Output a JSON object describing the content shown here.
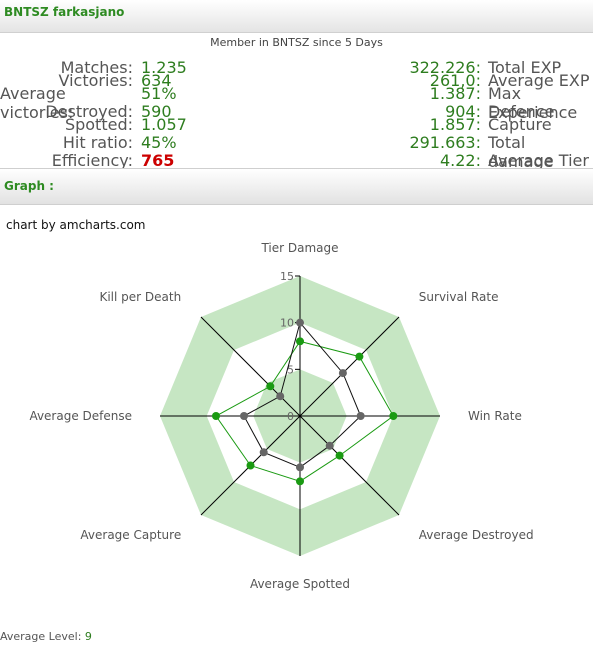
{
  "header": {
    "player_title": "BNTSZ farkasjano"
  },
  "member_line": "Member in BNTSZ  since 5 Days",
  "left_stats": [
    {
      "label": "Matches:",
      "value": "1.235"
    },
    {
      "label": "Victories:",
      "value": "634"
    },
    {
      "label": "Average victories:",
      "value": "51%"
    },
    {
      "label": "Destroyed:",
      "value": "590"
    },
    {
      "label": "Spotted:",
      "value": "1.057"
    },
    {
      "label": "Hit ratio:",
      "value": "45%"
    },
    {
      "label": "Efficiency:",
      "value": "765"
    }
  ],
  "right_stats": [
    {
      "value": "322.226:",
      "label": "Total EXP"
    },
    {
      "value": "261,0:",
      "label": "Average EXP"
    },
    {
      "value": "1.387:",
      "label": "Max Experience"
    },
    {
      "value": "904:",
      "label": "Defence"
    },
    {
      "value": "1.857:",
      "label": "Capture"
    },
    {
      "value": "291.663:",
      "label": "Total damage"
    },
    {
      "value": "4.22:",
      "label": "Average Tier"
    }
  ],
  "graph_section": {
    "title": "Graph :",
    "credit": "chart by amcharts.com"
  },
  "footer": {
    "avg_level_label": "Average Level:",
    "avg_level_value": "9"
  },
  "colors": {
    "green_title": "#2e8b22",
    "band": "#c6e6c3",
    "series_player": "#1a9a12",
    "series_ref": "#666666",
    "efficiency": "#cc0000"
  },
  "chart_data": {
    "type": "radar",
    "axes": [
      "Tier Damage",
      "Survival Rate",
      "Win Rate",
      "Average Destroyed",
      "Average Spotted",
      "Average Capture",
      "Average Defense",
      "Kill per Death"
    ],
    "ticks": [
      "0",
      "5",
      "10",
      "15"
    ],
    "range": [
      0,
      15
    ],
    "series": [
      {
        "values": [
          8,
          9,
          10,
          6,
          7,
          7.5,
          9,
          4.5
        ]
      },
      {
        "values": [
          10,
          6.5,
          6.5,
          4.5,
          5.5,
          5.5,
          6,
          3
        ]
      }
    ]
  }
}
